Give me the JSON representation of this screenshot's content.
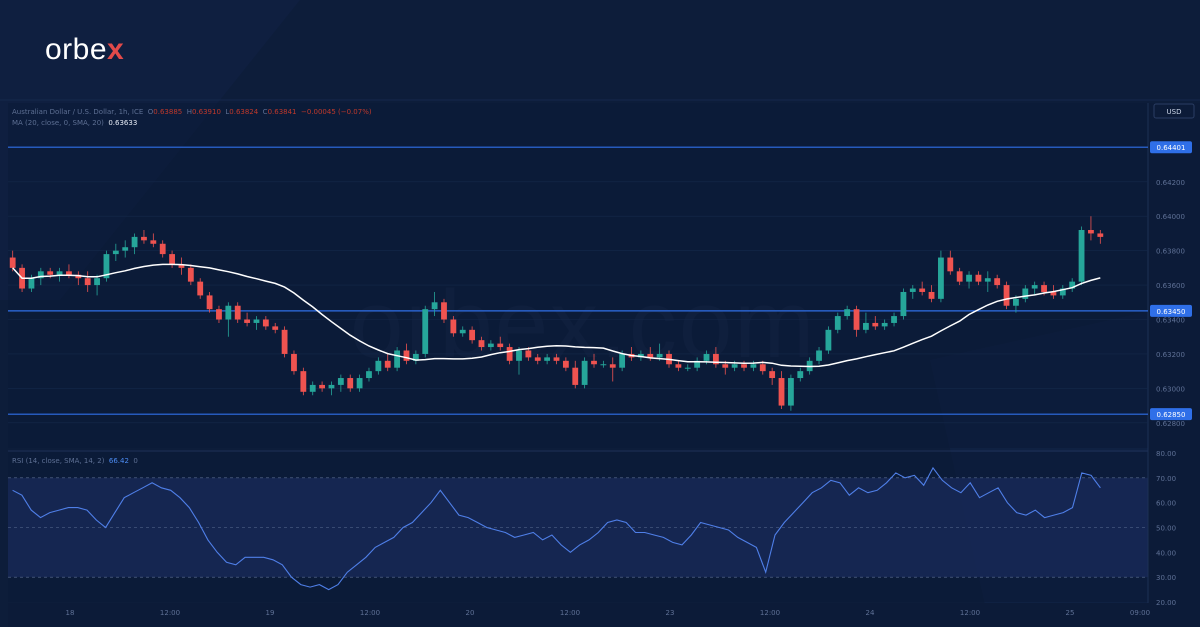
{
  "brand": {
    "name_prefix": "orbe",
    "name_suffix": "x",
    "watermark": "orbex.com"
  },
  "legend": {
    "main": "Australian Dollar / U.S. Dollar, 1h, ICE",
    "o_label": "O",
    "o_value": "0.63885",
    "h_label": "H",
    "h_value": "0.63910",
    "l_label": "L",
    "l_value": "0.63824",
    "c_label": "C",
    "c_value": "0.63841",
    "change": "−0.00045 (−0.07%)",
    "ma_label": "MA (20, close, 0, SMA, 20)",
    "ma_value": "0.63633",
    "rsi_label": "RSI (14, close, SMA, 14, 2)",
    "rsi_value": "66.42",
    "rsi_value2": "0"
  },
  "colors": {
    "up": "#26a69a",
    "down": "#ef5350",
    "ma": "#ffffff",
    "level": "#2f6fe8",
    "rsi": "#4f7fe8"
  },
  "chart_data": [
    {
      "type": "candlestick",
      "title": "Australian Dollar / U.S. Dollar, 1h, ICE",
      "currency": "USD",
      "ylim": [
        0.627,
        0.6453
      ],
      "y_ticks": [
        0.642,
        0.64,
        0.638,
        0.636,
        0.634,
        0.632,
        0.63,
        0.628
      ],
      "horizontal_levels": [
        0.64401,
        0.6345,
        0.6285
      ],
      "x_tick_labels": [
        "18",
        "12:00",
        "19",
        "12:00",
        "20",
        "12:00",
        "23",
        "12:00",
        "24",
        "12:00",
        "25",
        "09:00"
      ],
      "ohlc": [
        [
          0.6376,
          0.638,
          0.6368,
          0.637
        ],
        [
          0.637,
          0.6372,
          0.6356,
          0.6358
        ],
        [
          0.6358,
          0.6366,
          0.6356,
          0.6364
        ],
        [
          0.6364,
          0.637,
          0.636,
          0.6368
        ],
        [
          0.6368,
          0.637,
          0.6364,
          0.6366
        ],
        [
          0.6366,
          0.637,
          0.6362,
          0.6368
        ],
        [
          0.6368,
          0.6372,
          0.6364,
          0.6366
        ],
        [
          0.6366,
          0.6368,
          0.636,
          0.6364
        ],
        [
          0.6364,
          0.6368,
          0.6356,
          0.636
        ],
        [
          0.636,
          0.6366,
          0.6354,
          0.6364
        ],
        [
          0.6364,
          0.638,
          0.6362,
          0.6378
        ],
        [
          0.6378,
          0.6384,
          0.6374,
          0.638
        ],
        [
          0.638,
          0.6386,
          0.6376,
          0.6382
        ],
        [
          0.6382,
          0.639,
          0.6378,
          0.6388
        ],
        [
          0.6388,
          0.6392,
          0.6384,
          0.6386
        ],
        [
          0.6386,
          0.639,
          0.6382,
          0.6384
        ],
        [
          0.6384,
          0.6386,
          0.6376,
          0.6378
        ],
        [
          0.6378,
          0.638,
          0.637,
          0.6372
        ],
        [
          0.6372,
          0.6376,
          0.6366,
          0.637
        ],
        [
          0.637,
          0.6372,
          0.636,
          0.6362
        ],
        [
          0.6362,
          0.6364,
          0.6352,
          0.6354
        ],
        [
          0.6354,
          0.6356,
          0.6344,
          0.6346
        ],
        [
          0.6346,
          0.6348,
          0.6338,
          0.634
        ],
        [
          0.634,
          0.635,
          0.633,
          0.6348
        ],
        [
          0.6348,
          0.635,
          0.6338,
          0.634
        ],
        [
          0.634,
          0.6344,
          0.6336,
          0.6338
        ],
        [
          0.6338,
          0.6342,
          0.6334,
          0.634
        ],
        [
          0.634,
          0.6342,
          0.6334,
          0.6336
        ],
        [
          0.6336,
          0.6338,
          0.6332,
          0.6334
        ],
        [
          0.6334,
          0.6336,
          0.6318,
          0.632
        ],
        [
          0.632,
          0.6322,
          0.6308,
          0.631
        ],
        [
          0.631,
          0.6312,
          0.6296,
          0.6298
        ],
        [
          0.6298,
          0.6304,
          0.6296,
          0.6302
        ],
        [
          0.6302,
          0.6304,
          0.6298,
          0.63
        ],
        [
          0.63,
          0.6304,
          0.6296,
          0.6302
        ],
        [
          0.6302,
          0.6308,
          0.6298,
          0.6306
        ],
        [
          0.6306,
          0.6308,
          0.6298,
          0.63
        ],
        [
          0.63,
          0.6308,
          0.6298,
          0.6306
        ],
        [
          0.6306,
          0.6312,
          0.6304,
          0.631
        ],
        [
          0.631,
          0.6318,
          0.6308,
          0.6316
        ],
        [
          0.6316,
          0.632,
          0.631,
          0.6312
        ],
        [
          0.6312,
          0.6324,
          0.631,
          0.6322
        ],
        [
          0.6322,
          0.6326,
          0.6314,
          0.6316
        ],
        [
          0.6316,
          0.6322,
          0.6314,
          0.632
        ],
        [
          0.632,
          0.6348,
          0.6318,
          0.6346
        ],
        [
          0.6346,
          0.6356,
          0.6342,
          0.635
        ],
        [
          0.635,
          0.6352,
          0.6338,
          0.634
        ],
        [
          0.634,
          0.6342,
          0.633,
          0.6332
        ],
        [
          0.6332,
          0.6336,
          0.633,
          0.6334
        ],
        [
          0.6334,
          0.6336,
          0.6326,
          0.6328
        ],
        [
          0.6328,
          0.633,
          0.6322,
          0.6324
        ],
        [
          0.6324,
          0.6328,
          0.6322,
          0.6326
        ],
        [
          0.6326,
          0.633,
          0.6322,
          0.6324
        ],
        [
          0.6324,
          0.6326,
          0.6314,
          0.6316
        ],
        [
          0.6316,
          0.6324,
          0.6308,
          0.6322
        ],
        [
          0.6322,
          0.6324,
          0.6316,
          0.6318
        ],
        [
          0.6318,
          0.632,
          0.6314,
          0.6316
        ],
        [
          0.6316,
          0.632,
          0.6314,
          0.6318
        ],
        [
          0.6318,
          0.632,
          0.6314,
          0.6316
        ],
        [
          0.6316,
          0.6318,
          0.631,
          0.6312
        ],
        [
          0.6312,
          0.6316,
          0.63,
          0.6302
        ],
        [
          0.6302,
          0.6318,
          0.63,
          0.6316
        ],
        [
          0.6316,
          0.632,
          0.6312,
          0.6314
        ],
        [
          0.6314,
          0.6316,
          0.6312,
          0.6314
        ],
        [
          0.6314,
          0.6318,
          0.6304,
          0.6312
        ],
        [
          0.6312,
          0.6322,
          0.631,
          0.632
        ],
        [
          0.632,
          0.6324,
          0.6316,
          0.6318
        ],
        [
          0.6318,
          0.6322,
          0.6316,
          0.632
        ],
        [
          0.632,
          0.6324,
          0.6316,
          0.6318
        ],
        [
          0.6318,
          0.6326,
          0.6316,
          0.632
        ],
        [
          0.632,
          0.6322,
          0.6312,
          0.6314
        ],
        [
          0.6314,
          0.6316,
          0.631,
          0.6312
        ],
        [
          0.6312,
          0.6314,
          0.631,
          0.6312
        ],
        [
          0.6312,
          0.6318,
          0.631,
          0.6316
        ],
        [
          0.6316,
          0.6322,
          0.6314,
          0.632
        ],
        [
          0.632,
          0.6324,
          0.6312,
          0.6314
        ],
        [
          0.6314,
          0.6316,
          0.6308,
          0.6312
        ],
        [
          0.6312,
          0.6316,
          0.631,
          0.6314
        ],
        [
          0.6314,
          0.6316,
          0.631,
          0.6312
        ],
        [
          0.6312,
          0.6316,
          0.631,
          0.6314
        ],
        [
          0.6314,
          0.6316,
          0.6308,
          0.631
        ],
        [
          0.631,
          0.6312,
          0.6302,
          0.6306
        ],
        [
          0.6306,
          0.631,
          0.6288,
          0.629
        ],
        [
          0.629,
          0.6308,
          0.6287,
          0.6306
        ],
        [
          0.6306,
          0.6312,
          0.6304,
          0.631
        ],
        [
          0.631,
          0.6318,
          0.6308,
          0.6316
        ],
        [
          0.6316,
          0.6324,
          0.6314,
          0.6322
        ],
        [
          0.6322,
          0.6336,
          0.632,
          0.6334
        ],
        [
          0.6334,
          0.6344,
          0.6332,
          0.6342
        ],
        [
          0.6342,
          0.6348,
          0.634,
          0.6346
        ],
        [
          0.6346,
          0.6348,
          0.633,
          0.6334
        ],
        [
          0.6334,
          0.6344,
          0.6332,
          0.6338
        ],
        [
          0.6338,
          0.6342,
          0.6334,
          0.6336
        ],
        [
          0.6336,
          0.634,
          0.6334,
          0.6338
        ],
        [
          0.6338,
          0.6344,
          0.6336,
          0.6342
        ],
        [
          0.6342,
          0.6358,
          0.634,
          0.6356
        ],
        [
          0.6356,
          0.636,
          0.6352,
          0.6358
        ],
        [
          0.6358,
          0.6362,
          0.6354,
          0.6356
        ],
        [
          0.6356,
          0.636,
          0.635,
          0.6352
        ],
        [
          0.6352,
          0.638,
          0.635,
          0.6376
        ],
        [
          0.6376,
          0.638,
          0.6366,
          0.6368
        ],
        [
          0.6368,
          0.637,
          0.636,
          0.6362
        ],
        [
          0.6362,
          0.6368,
          0.6358,
          0.6366
        ],
        [
          0.6366,
          0.6368,
          0.636,
          0.6362
        ],
        [
          0.6362,
          0.6368,
          0.6356,
          0.6364
        ],
        [
          0.6364,
          0.6366,
          0.6358,
          0.636
        ],
        [
          0.636,
          0.6362,
          0.6346,
          0.6348
        ],
        [
          0.6348,
          0.6354,
          0.6344,
          0.6352
        ],
        [
          0.6352,
          0.636,
          0.635,
          0.6358
        ],
        [
          0.6358,
          0.6362,
          0.6354,
          0.636
        ],
        [
          0.636,
          0.6362,
          0.6354,
          0.6356
        ],
        [
          0.6356,
          0.636,
          0.6352,
          0.6354
        ],
        [
          0.6354,
          0.636,
          0.6352,
          0.6358
        ],
        [
          0.6358,
          0.6364,
          0.6356,
          0.6362
        ],
        [
          0.6362,
          0.6394,
          0.636,
          0.6392
        ],
        [
          0.6392,
          0.64,
          0.6386,
          0.639
        ],
        [
          0.639,
          0.6392,
          0.6384,
          0.6388
        ]
      ],
      "ma_period": 20,
      "ma_last": 0.63633
    },
    {
      "type": "line",
      "title": "RSI (14, close, SMA, 14, 2)",
      "ylim": [
        20,
        80
      ],
      "y_ticks": [
        80.0,
        70.0,
        60.0,
        50.0,
        40.0,
        30.0,
        20.0
      ],
      "bands": [
        70,
        50,
        30
      ],
      "last_value": 66.42,
      "values": [
        65,
        63,
        57,
        54,
        56,
        57,
        58,
        58,
        57,
        53,
        50,
        56,
        62,
        64,
        66,
        68,
        66,
        65,
        62,
        58,
        52,
        45,
        40,
        36,
        35,
        38,
        38,
        38,
        37,
        35,
        30,
        27,
        26,
        27,
        25,
        27,
        32,
        35,
        38,
        42,
        44,
        46,
        50,
        52,
        56,
        60,
        65,
        60,
        55,
        54,
        52,
        50,
        49,
        48,
        46,
        47,
        48,
        45,
        47,
        43,
        40,
        43,
        45,
        48,
        52,
        53,
        52,
        48,
        48,
        47,
        46,
        44,
        43,
        47,
        52,
        51,
        50,
        49,
        46,
        44,
        42,
        32,
        47,
        52,
        56,
        60,
        64,
        66,
        69,
        68,
        63,
        66,
        64,
        65,
        68,
        72,
        70,
        71,
        67,
        74,
        69,
        66,
        64,
        68,
        62,
        64,
        66,
        60,
        56,
        55,
        57,
        54,
        55,
        56,
        58,
        72,
        71,
        66
      ]
    }
  ]
}
